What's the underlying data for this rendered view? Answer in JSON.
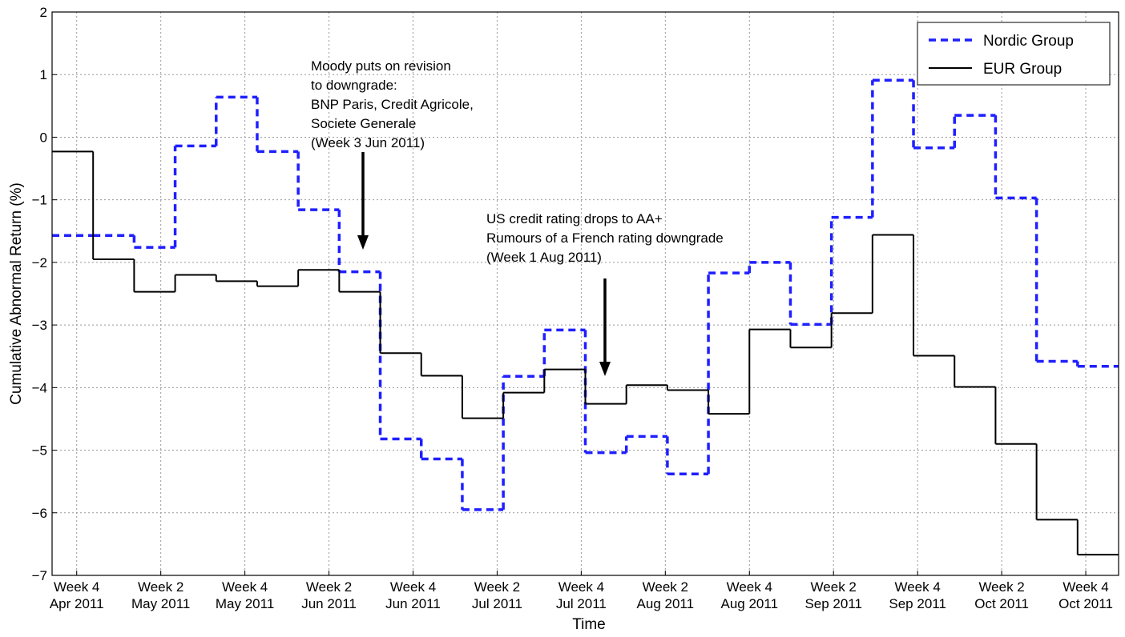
{
  "chart_data": {
    "type": "step",
    "xlabel": "Time",
    "ylabel": "Cumulative Abnormal Return (%)",
    "x": [
      0,
      1,
      2,
      3,
      4,
      5,
      6,
      7,
      8,
      9,
      10,
      11,
      12,
      13,
      14,
      15,
      16,
      17,
      18,
      19,
      20,
      21,
      22,
      23,
      24,
      25
    ],
    "series": [
      {
        "name": "Nordic Group",
        "color": "#1f1fff",
        "dashed": true,
        "values": [
          -1.57,
          -1.57,
          -1.76,
          -0.14,
          0.64,
          -0.23,
          -1.16,
          -2.15,
          -4.82,
          -5.14,
          -5.95,
          -3.82,
          -3.08,
          -5.04,
          -4.78,
          -5.38,
          -2.17,
          -2.0,
          -2.99,
          -1.28,
          0.91,
          -0.17,
          0.35,
          -0.97,
          -3.58,
          -3.66
        ]
      },
      {
        "name": "EUR Group",
        "color": "#000000",
        "dashed": false,
        "values": [
          -0.23,
          -1.95,
          -2.47,
          -2.2,
          -2.3,
          -2.38,
          -2.12,
          -2.47,
          -3.45,
          -3.81,
          -4.49,
          -4.08,
          -3.71,
          -4.26,
          -3.96,
          -4.04,
          -4.42,
          -3.07,
          -3.36,
          -2.81,
          -1.56,
          -3.49,
          -3.99,
          -4.9,
          -6.11,
          -6.67
        ]
      }
    ],
    "xlim": [
      0,
      26
    ],
    "xticks": [
      {
        "value": 0.6,
        "label": [
          "Week 4",
          "Apr 2011"
        ]
      },
      {
        "value": 2.65,
        "label": [
          "Week 2",
          "May 2011"
        ]
      },
      {
        "value": 4.7,
        "label": [
          "Week 4",
          "May 2011"
        ]
      },
      {
        "value": 6.75,
        "label": [
          "Week 2",
          "Jun 2011"
        ]
      },
      {
        "value": 8.8,
        "label": [
          "Week 4",
          "Jun 2011"
        ]
      },
      {
        "value": 10.85,
        "label": [
          "Week 2",
          "Jul 2011"
        ]
      },
      {
        "value": 12.9,
        "label": [
          "Week 4",
          "Jul 2011"
        ]
      },
      {
        "value": 14.95,
        "label": [
          "Week 2",
          "Aug 2011"
        ]
      },
      {
        "value": 17,
        "label": [
          "Week 4",
          "Aug 2011"
        ]
      },
      {
        "value": 19.05,
        "label": [
          "Week 2",
          "Sep 2011"
        ]
      },
      {
        "value": 21.1,
        "label": [
          "Week 4",
          "Sep 2011"
        ]
      },
      {
        "value": 23.15,
        "label": [
          "Week 2",
          "Oct 2011"
        ]
      },
      {
        "value": 25.2,
        "label": [
          "Week 4",
          "Oct 2011"
        ]
      }
    ],
    "ylim": [
      -7,
      2
    ],
    "yticks": [
      {
        "value": -7,
        "label": "−7"
      },
      {
        "value": -6,
        "label": "−6"
      },
      {
        "value": -5,
        "label": "−5"
      },
      {
        "value": -4,
        "label": "−4"
      },
      {
        "value": -3,
        "label": "−3"
      },
      {
        "value": -2,
        "label": "−2"
      },
      {
        "value": -1,
        "label": "−1"
      },
      0,
      1,
      2
    ],
    "grid": true,
    "legend": "upper right",
    "annotations": [
      [
        "Moody puts on revision",
        "to downgrade:",
        "BNP Paris, Credit Agricole,",
        "Societe Generale",
        "(Week 3 Jun 2011)"
      ],
      [
        "US credit rating drops to AA+",
        "Rumours of a French rating downgrade",
        "(Week 1 Aug 2011)"
      ]
    ]
  }
}
